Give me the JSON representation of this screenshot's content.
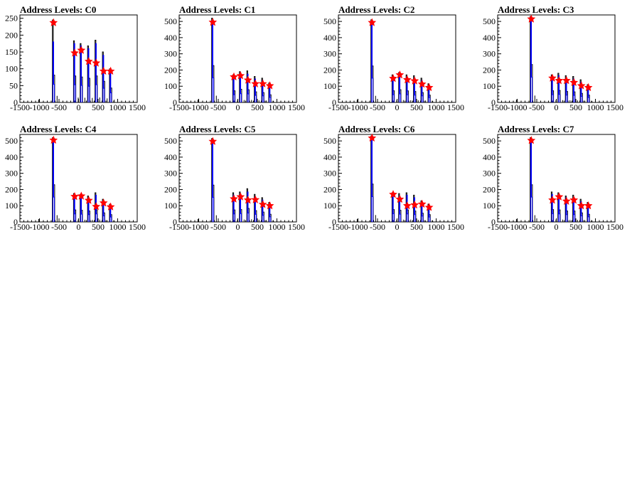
{
  "colors": {
    "background": "#ffffff",
    "frame": "#000000",
    "hist_outer": "#000000",
    "hist_inner": "#0000ff",
    "peak_marker": "#ff0000"
  },
  "chart_data": [
    {
      "type": "histogram",
      "title": "Address Levels: C0",
      "xlim": [
        -1500,
        1500
      ],
      "ylim": [
        0,
        260
      ],
      "xticks": [
        "-1500",
        "-1000",
        "-500",
        "0",
        "500",
        "1000",
        "1500"
      ],
      "yticks": [
        "0",
        "50",
        "100",
        "150",
        "200",
        "250"
      ],
      "peaks": [
        {
          "x": -640,
          "outer": 245,
          "inner": 180,
          "marker": 237
        },
        {
          "x": -100,
          "outer": 183,
          "inner": 175,
          "marker": 147
        },
        {
          "x": 70,
          "outer": 175,
          "inner": 168,
          "marker": 155
        },
        {
          "x": 260,
          "outer": 168,
          "inner": 160,
          "marker": 122
        },
        {
          "x": 450,
          "outer": 185,
          "inner": 175,
          "marker": 117
        },
        {
          "x": 640,
          "outer": 150,
          "inner": 140,
          "marker": 93
        },
        {
          "x": 820,
          "outer": 100,
          "inner": 95,
          "marker": 93
        }
      ]
    },
    {
      "type": "histogram",
      "title": "Address Levels: C1",
      "xlim": [
        -1500,
        1500
      ],
      "ylim": [
        0,
        540
      ],
      "xticks": [
        "-1500",
        "-1000",
        "-500",
        "0",
        "500",
        "1000",
        "1500"
      ],
      "yticks": [
        "0",
        "100",
        "200",
        "300",
        "400",
        "500"
      ],
      "peaks": [
        {
          "x": -640,
          "outer": 520,
          "inner": 505,
          "marker": 495
        },
        {
          "x": -100,
          "outer": 170,
          "inner": 160,
          "marker": 158
        },
        {
          "x": 70,
          "outer": 190,
          "inner": 180,
          "marker": 165
        },
        {
          "x": 260,
          "outer": 195,
          "inner": 175,
          "marker": 138
        },
        {
          "x": 450,
          "outer": 160,
          "inner": 145,
          "marker": 115
        },
        {
          "x": 640,
          "outer": 150,
          "inner": 135,
          "marker": 115
        },
        {
          "x": 820,
          "outer": 120,
          "inner": 105,
          "marker": 103
        }
      ]
    },
    {
      "type": "histogram",
      "title": "Address Levels: C2",
      "xlim": [
        -1500,
        1500
      ],
      "ylim": [
        0,
        540
      ],
      "xticks": [
        "-1500",
        "-1000",
        "-500",
        "0",
        "500",
        "1000",
        "1500"
      ],
      "yticks": [
        "0",
        "100",
        "200",
        "300",
        "400",
        "500"
      ],
      "peaks": [
        {
          "x": -640,
          "outer": 510,
          "inner": 500,
          "marker": 493
        },
        {
          "x": -100,
          "outer": 170,
          "inner": 160,
          "marker": 148
        },
        {
          "x": 70,
          "outer": 185,
          "inner": 175,
          "marker": 170
        },
        {
          "x": 260,
          "outer": 170,
          "inner": 158,
          "marker": 140
        },
        {
          "x": 450,
          "outer": 165,
          "inner": 150,
          "marker": 133
        },
        {
          "x": 640,
          "outer": 150,
          "inner": 135,
          "marker": 113
        },
        {
          "x": 820,
          "outer": 115,
          "inner": 100,
          "marker": 92
        }
      ]
    },
    {
      "type": "histogram",
      "title": "Address Levels: C3",
      "xlim": [
        -1500,
        1500
      ],
      "ylim": [
        0,
        540
      ],
      "xticks": [
        "-1500",
        "-1000",
        "-500",
        "0",
        "500",
        "1000",
        "1500"
      ],
      "yticks": [
        "0",
        "100",
        "200",
        "300",
        "400",
        "500"
      ],
      "peaks": [
        {
          "x": -640,
          "outer": 530,
          "inner": 520,
          "marker": 515
        },
        {
          "x": -100,
          "outer": 170,
          "inner": 160,
          "marker": 150
        },
        {
          "x": 70,
          "outer": 180,
          "inner": 165,
          "marker": 135
        },
        {
          "x": 260,
          "outer": 165,
          "inner": 150,
          "marker": 135
        },
        {
          "x": 450,
          "outer": 160,
          "inner": 145,
          "marker": 123
        },
        {
          "x": 640,
          "outer": 140,
          "inner": 125,
          "marker": 103
        },
        {
          "x": 820,
          "outer": 110,
          "inner": 100,
          "marker": 92
        }
      ]
    },
    {
      "type": "histogram",
      "title": "Address Levels: C4",
      "xlim": [
        -1500,
        1500
      ],
      "ylim": [
        0,
        540
      ],
      "xticks": [
        "-1500",
        "-1000",
        "-500",
        "0",
        "500",
        "1000",
        "1500"
      ],
      "yticks": [
        "0",
        "100",
        "200",
        "300",
        "400",
        "500"
      ],
      "peaks": [
        {
          "x": -640,
          "outer": 520,
          "inner": 510,
          "marker": 505
        },
        {
          "x": -100,
          "outer": 175,
          "inner": 165,
          "marker": 157
        },
        {
          "x": 70,
          "outer": 170,
          "inner": 160,
          "marker": 160
        },
        {
          "x": 260,
          "outer": 160,
          "inner": 150,
          "marker": 133
        },
        {
          "x": 450,
          "outer": 180,
          "inner": 165,
          "marker": 95
        },
        {
          "x": 640,
          "outer": 140,
          "inner": 125,
          "marker": 117
        },
        {
          "x": 820,
          "outer": 110,
          "inner": 100,
          "marker": 93
        }
      ]
    },
    {
      "type": "histogram",
      "title": "Address Levels: C5",
      "xlim": [
        -1500,
        1500
      ],
      "ylim": [
        0,
        540
      ],
      "xticks": [
        "-1500",
        "-1000",
        "-500",
        "0",
        "500",
        "1000",
        "1500"
      ],
      "yticks": [
        "0",
        "100",
        "200",
        "300",
        "400",
        "500"
      ],
      "peaks": [
        {
          "x": -640,
          "outer": 515,
          "inner": 505,
          "marker": 497
        },
        {
          "x": -100,
          "outer": 180,
          "inner": 165,
          "marker": 142
        },
        {
          "x": 70,
          "outer": 185,
          "inner": 170,
          "marker": 155
        },
        {
          "x": 260,
          "outer": 205,
          "inner": 185,
          "marker": 135
        },
        {
          "x": 450,
          "outer": 170,
          "inner": 155,
          "marker": 137
        },
        {
          "x": 640,
          "outer": 150,
          "inner": 135,
          "marker": 108
        },
        {
          "x": 820,
          "outer": 120,
          "inner": 105,
          "marker": 100
        }
      ]
    },
    {
      "type": "histogram",
      "title": "Address Levels: C6",
      "xlim": [
        -1500,
        1500
      ],
      "ylim": [
        0,
        540
      ],
      "xticks": [
        "-1500",
        "-1000",
        "-500",
        "0",
        "500",
        "1000",
        "1500"
      ],
      "yticks": [
        "0",
        "100",
        "200",
        "300",
        "400",
        "500"
      ],
      "peaks": [
        {
          "x": -640,
          "outer": 530,
          "inner": 520,
          "marker": 518
        },
        {
          "x": -100,
          "outer": 180,
          "inner": 170,
          "marker": 170
        },
        {
          "x": 70,
          "outer": 175,
          "inner": 160,
          "marker": 140
        },
        {
          "x": 260,
          "outer": 180,
          "inner": 165,
          "marker": 100
        },
        {
          "x": 450,
          "outer": 165,
          "inner": 150,
          "marker": 105
        },
        {
          "x": 640,
          "outer": 130,
          "inner": 120,
          "marker": 110
        },
        {
          "x": 820,
          "outer": 110,
          "inner": 100,
          "marker": 90
        }
      ]
    },
    {
      "type": "histogram",
      "title": "Address Levels: C7",
      "xlim": [
        -1500,
        1500
      ],
      "ylim": [
        0,
        540
      ],
      "xticks": [
        "-1500",
        "-1000",
        "-500",
        "0",
        "500",
        "1000",
        "1500"
      ],
      "yticks": [
        "0",
        "100",
        "200",
        "300",
        "400",
        "500"
      ],
      "peaks": [
        {
          "x": -640,
          "outer": 520,
          "inner": 510,
          "marker": 503
        },
        {
          "x": -100,
          "outer": 185,
          "inner": 170,
          "marker": 135
        },
        {
          "x": 70,
          "outer": 180,
          "inner": 165,
          "marker": 155
        },
        {
          "x": 260,
          "outer": 160,
          "inner": 150,
          "marker": 128
        },
        {
          "x": 450,
          "outer": 165,
          "inner": 150,
          "marker": 135
        },
        {
          "x": 640,
          "outer": 140,
          "inner": 125,
          "marker": 100
        },
        {
          "x": 820,
          "outer": 120,
          "inner": 105,
          "marker": 100
        }
      ]
    }
  ]
}
